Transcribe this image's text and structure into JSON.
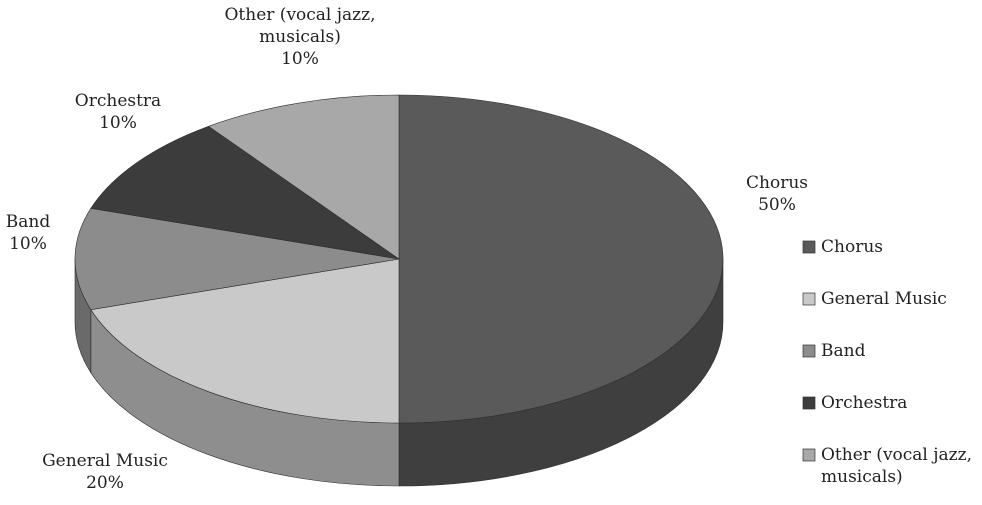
{
  "chart_data": {
    "type": "pie",
    "style": "3d",
    "categories": [
      "Chorus",
      "General Music",
      "Band",
      "Orchestra",
      "Other (vocal jazz, musicals)"
    ],
    "values": [
      50,
      20,
      10,
      10,
      10
    ],
    "unit": "%",
    "value_labels": [
      "50%",
      "20%",
      "10%",
      "10%",
      "10%"
    ],
    "slice_labels": [
      [
        "Chorus"
      ],
      [
        "General Music"
      ],
      [
        "Band"
      ],
      [
        "Orchestra"
      ],
      [
        "Other (vocal jazz,",
        "musicals)"
      ]
    ],
    "legend": {
      "position": "right",
      "entries": [
        [
          "Chorus"
        ],
        [
          "General Music"
        ],
        [
          "Band"
        ],
        [
          "Orchestra"
        ],
        [
          "Other (vocal jazz,",
          "musicals)"
        ]
      ]
    },
    "colors": [
      "#5a5a5a",
      "#c9c9c9",
      "#8c8c8c",
      "#3c3c3c",
      "#a8a8a8"
    ],
    "side_colors": [
      "#3f3f3f",
      "#8e8e8e",
      "#6a6a6a",
      "#2a2a2a",
      "#7a7a7a"
    ],
    "title": ""
  }
}
